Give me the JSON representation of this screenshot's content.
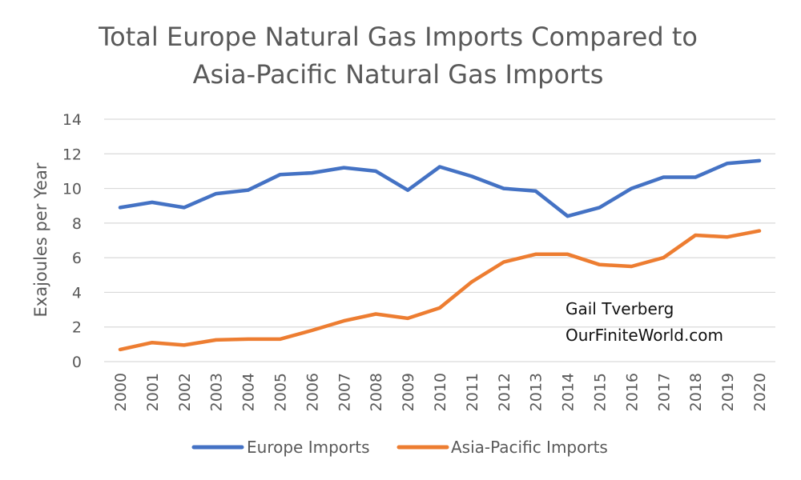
{
  "chart_data": {
    "type": "line",
    "title_lines": [
      "Total Europe Natural Gas Imports Compared to",
      "Asia-Pacific Natural Gas Imports"
    ],
    "ylabel": "Exajoules per Year",
    "xlabel": "",
    "ylim": [
      0,
      14
    ],
    "yticks": [
      0,
      2,
      4,
      6,
      8,
      10,
      12,
      14
    ],
    "grid": true,
    "legend_position": "bottom",
    "categories": [
      "2000",
      "2001",
      "2002",
      "2003",
      "2004",
      "2005",
      "2006",
      "2007",
      "2008",
      "2009",
      "2010",
      "2011",
      "2012",
      "2013",
      "2014",
      "2015",
      "2016",
      "2017",
      "2018",
      "2019",
      "2020"
    ],
    "series": [
      {
        "name": "Europe Imports",
        "color": "#4472c4",
        "values": [
          8.9,
          9.2,
          8.9,
          9.7,
          9.9,
          10.8,
          10.9,
          11.2,
          11.0,
          9.9,
          11.25,
          10.7,
          10.0,
          9.85,
          8.4,
          8.9,
          10.0,
          10.65,
          10.65,
          11.45,
          11.6
        ]
      },
      {
        "name": "Asia-Pacific Imports",
        "color": "#ed7d31",
        "values": [
          0.7,
          1.1,
          0.95,
          1.25,
          1.3,
          1.3,
          1.8,
          2.35,
          2.75,
          2.5,
          3.1,
          4.6,
          5.75,
          6.2,
          6.2,
          5.6,
          5.5,
          6.0,
          7.3,
          7.2,
          7.55
        ]
      }
    ],
    "annotations": [
      "Gail Tverberg",
      "OurFiniteWorld.com"
    ]
  }
}
